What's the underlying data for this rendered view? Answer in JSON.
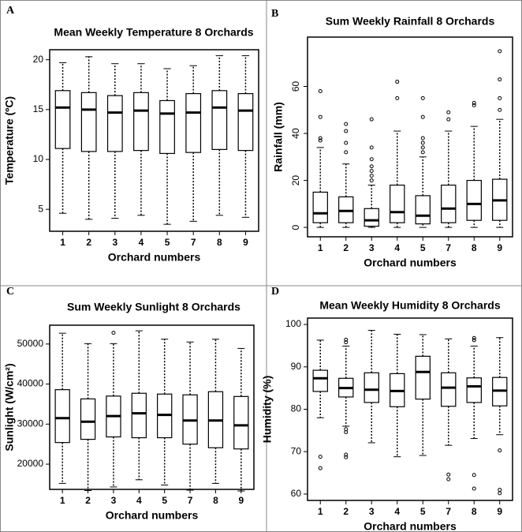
{
  "chart_data": [
    {
      "type": "box",
      "panel_label": "A",
      "title": "Mean Weekly Temperature 8 Orchards",
      "x_label": "Orchard numbers",
      "y_label": "Temperature (ºC)",
      "categories": [
        "1",
        "2",
        "3",
        "4",
        "5",
        "7",
        "8",
        "9"
      ],
      "ylim": [
        2.8,
        21
      ],
      "yticks": [
        5,
        10,
        15,
        20
      ],
      "boxes": [
        {
          "whisker_low": 4.6,
          "q1": 11.1,
          "median": 15.2,
          "q3": 16.9,
          "whisker_high": 19.7,
          "outliers": []
        },
        {
          "whisker_low": 4.0,
          "q1": 10.8,
          "median": 15.0,
          "q3": 16.7,
          "whisker_high": 20.3,
          "outliers": []
        },
        {
          "whisker_low": 4.1,
          "q1": 10.8,
          "median": 14.7,
          "q3": 16.4,
          "whisker_high": 19.6,
          "outliers": []
        },
        {
          "whisker_low": 4.4,
          "q1": 10.9,
          "median": 14.9,
          "q3": 16.7,
          "whisker_high": 19.6,
          "outliers": []
        },
        {
          "whisker_low": 3.5,
          "q1": 10.6,
          "median": 14.6,
          "q3": 15.9,
          "whisker_high": 19.1,
          "outliers": []
        },
        {
          "whisker_low": 3.8,
          "q1": 10.7,
          "median": 14.7,
          "q3": 16.6,
          "whisker_high": 19.4,
          "outliers": []
        },
        {
          "whisker_low": 4.4,
          "q1": 11.0,
          "median": 15.2,
          "q3": 16.9,
          "whisker_high": 20.4,
          "outliers": []
        },
        {
          "whisker_low": 4.2,
          "q1": 10.9,
          "median": 14.9,
          "q3": 16.6,
          "whisker_high": 20.4,
          "outliers": []
        }
      ]
    },
    {
      "type": "box",
      "panel_label": "B",
      "title": "Sum Weekly Rainfall 8 Orchards",
      "x_label": "Orchard numbers",
      "y_label": "Rainfall (mm)",
      "categories": [
        "1",
        "2",
        "3",
        "4",
        "5",
        "7",
        "8",
        "9"
      ],
      "ylim": [
        -4,
        81
      ],
      "yticks": [
        0,
        20,
        40,
        60
      ],
      "boxes": [
        {
          "whisker_low": 0,
          "q1": 2,
          "median": 6,
          "q3": 15,
          "whisker_high": 34,
          "outliers": [
            37,
            38,
            47,
            58
          ]
        },
        {
          "whisker_low": 0,
          "q1": 2,
          "median": 7,
          "q3": 13,
          "whisker_high": 27,
          "outliers": [
            32,
            36,
            41,
            44
          ]
        },
        {
          "whisker_low": 0,
          "q1": 0.5,
          "median": 3,
          "q3": 8,
          "whisker_high": 18,
          "outliers": [
            20,
            22,
            24,
            26,
            29,
            34,
            46
          ]
        },
        {
          "whisker_low": 0,
          "q1": 2,
          "median": 6.5,
          "q3": 18,
          "whisker_high": 41,
          "outliers": [
            55,
            62
          ]
        },
        {
          "whisker_low": 0,
          "q1": 1.5,
          "median": 5,
          "q3": 13.5,
          "whisker_high": 30,
          "outliers": [
            32,
            34,
            36,
            38,
            47,
            55
          ]
        },
        {
          "whisker_low": 0,
          "q1": 2,
          "median": 8,
          "q3": 18,
          "whisker_high": 41,
          "outliers": [
            46,
            49
          ]
        },
        {
          "whisker_low": 0,
          "q1": 3,
          "median": 10,
          "q3": 20,
          "whisker_high": 43,
          "outliers": [
            52,
            53
          ]
        },
        {
          "whisker_low": 0,
          "q1": 3,
          "median": 11.5,
          "q3": 20.5,
          "whisker_high": 46,
          "outliers": [
            50,
            55,
            63,
            75
          ]
        }
      ]
    },
    {
      "type": "box",
      "panel_label": "C",
      "title": "Sum Weekly Sunlight 8 Orchards",
      "x_label": "Orchard numbers",
      "y_label": "Sunlight (W/cm²)",
      "categories": [
        "1",
        "2",
        "3",
        "4",
        "5",
        "7",
        "8",
        "9"
      ],
      "ylim": [
        13700,
        54700
      ],
      "yticks": [
        20000,
        30000,
        40000,
        50000
      ],
      "boxes": [
        {
          "whisker_low": 15200,
          "q1": 25400,
          "median": 31500,
          "q3": 38600,
          "whisker_high": 52700,
          "outliers": []
        },
        {
          "whisker_low": 13400,
          "q1": 26200,
          "median": 30600,
          "q3": 36300,
          "whisker_high": 50100,
          "outliers": []
        },
        {
          "whisker_low": 14300,
          "q1": 26800,
          "median": 32000,
          "q3": 37000,
          "whisker_high": 50100,
          "outliers": [
            52800
          ]
        },
        {
          "whisker_low": 16100,
          "q1": 26600,
          "median": 32700,
          "q3": 37700,
          "whisker_high": 53300,
          "outliers": []
        },
        {
          "whisker_low": 14800,
          "q1": 26600,
          "median": 32300,
          "q3": 37500,
          "whisker_high": 51200,
          "outliers": []
        },
        {
          "whisker_low": 13500,
          "q1": 25000,
          "median": 30900,
          "q3": 37300,
          "whisker_high": 50500,
          "outliers": []
        },
        {
          "whisker_low": 15200,
          "q1": 24100,
          "median": 30900,
          "q3": 38100,
          "whisker_high": 51200,
          "outliers": []
        },
        {
          "whisker_low": 13300,
          "q1": 23800,
          "median": 29700,
          "q3": 36900,
          "whisker_high": 48900,
          "outliers": []
        }
      ]
    },
    {
      "type": "box",
      "panel_label": "D",
      "title": "Mean Weekly Humidity 8 Orchards",
      "x_label": "Orchard numbers",
      "y_label": "Humidity (%)",
      "categories": [
        "1",
        "2",
        "3",
        "4",
        "5",
        "7",
        "8",
        "9"
      ],
      "ylim": [
        58.5,
        101.5
      ],
      "yticks": [
        60,
        70,
        80,
        90,
        100
      ],
      "boxes": [
        {
          "whisker_low": 78,
          "q1": 84.2,
          "median": 87.3,
          "q3": 89.2,
          "whisker_high": 96.3,
          "outliers": [
            68.8,
            66.1
          ]
        },
        {
          "whisker_low": 76,
          "q1": 82.9,
          "median": 85,
          "q3": 87.3,
          "whisker_high": 94.9,
          "outliers": [
            96.4,
            95.8,
            75.3,
            74.6,
            69.3,
            68.7
          ]
        },
        {
          "whisker_low": 72.1,
          "q1": 81.6,
          "median": 84.6,
          "q3": 88.6,
          "whisker_high": 98.6,
          "outliers": []
        },
        {
          "whisker_low": 68.8,
          "q1": 80.6,
          "median": 84.3,
          "q3": 88.4,
          "whisker_high": 97.7,
          "outliers": []
        },
        {
          "whisker_low": 69.1,
          "q1": 82.4,
          "median": 88.8,
          "q3": 92.5,
          "whisker_high": 97.6,
          "outliers": []
        },
        {
          "whisker_low": 71.5,
          "q1": 80.7,
          "median": 85.1,
          "q3": 88.6,
          "whisker_high": 96.6,
          "outliers": [
            64.6,
            63.5
          ]
        },
        {
          "whisker_low": 73.1,
          "q1": 81.6,
          "median": 85.4,
          "q3": 87.4,
          "whisker_high": 94.9,
          "outliers": [
            96.8,
            96.3,
            64.5,
            61.3
          ]
        },
        {
          "whisker_low": 74,
          "q1": 80.8,
          "median": 84.4,
          "q3": 87.5,
          "whisker_high": 96.9,
          "outliers": [
            70.3,
            61,
            60.2
          ]
        }
      ]
    }
  ]
}
